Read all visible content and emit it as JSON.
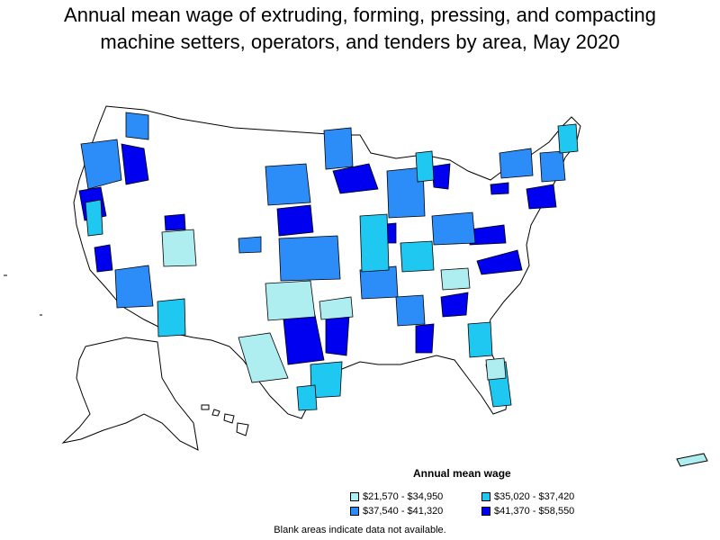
{
  "title_line1": "Annual mean wage of extruding, forming, pressing, and compacting",
  "title_line2": "machine setters, operators, and tenders by area, May 2020",
  "legend": {
    "title": "Annual mean wage",
    "items": [
      {
        "label": "$21,570 - $34,950",
        "color": "#aeeef0"
      },
      {
        "label": "$35,020 - $37,420",
        "color": "#1ec8f0"
      },
      {
        "label": "$37,540 - $41,320",
        "color": "#2c8cf8"
      },
      {
        "label": "$41,370 - $58,550",
        "color": "#0000f0"
      }
    ]
  },
  "note": "Blank areas indicate data not available."
}
